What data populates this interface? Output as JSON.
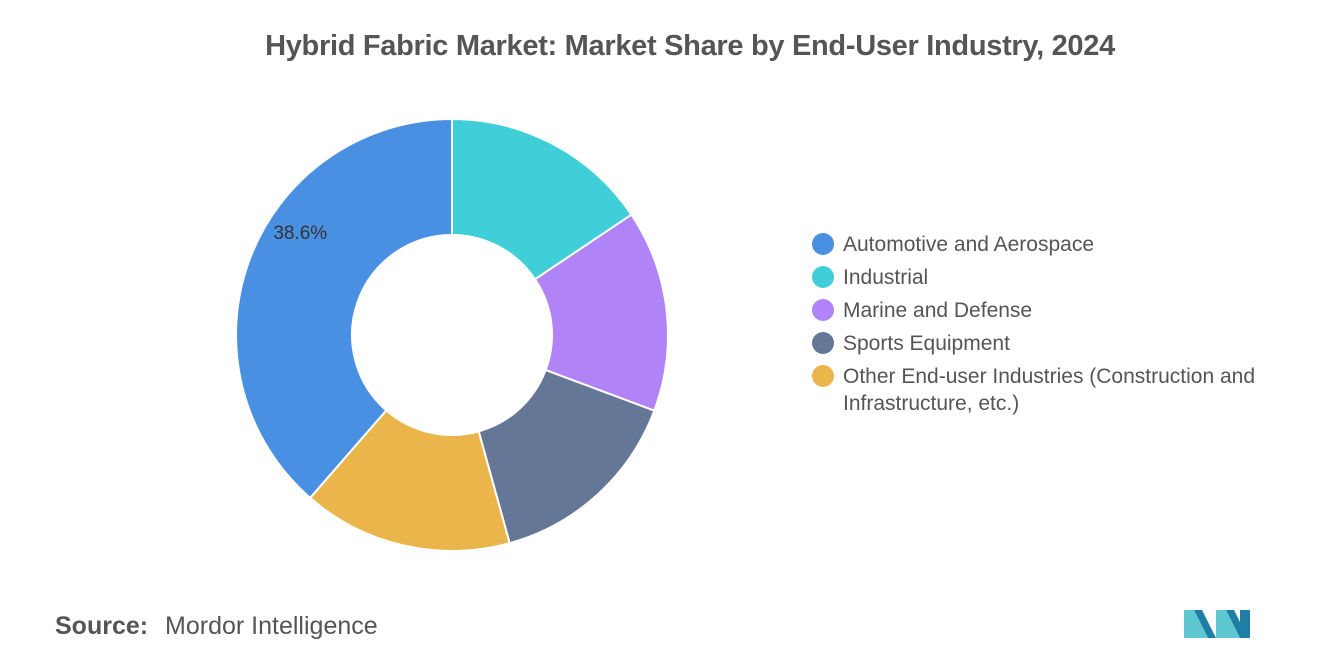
{
  "chart_data": {
    "type": "pie",
    "title": "Hybrid Fabric Market: Market Share by End-User Industry, 2024",
    "donut": true,
    "legend_position": "right",
    "series": [
      {
        "name": "Automotive and Aerospace",
        "value": 38.6,
        "color": "#4a90e2",
        "label": "38.6%"
      },
      {
        "name": "Industrial",
        "value": 15.6,
        "color": "#40cfd8",
        "label": ""
      },
      {
        "name": "Marine and Defense",
        "value": 15.1,
        "color": "#b084f7",
        "label": ""
      },
      {
        "name": "Sports Equipment",
        "value": 15.0,
        "color": "#657796",
        "label": ""
      },
      {
        "name": "Other End-user Industries (Construction and Infrastructure, etc.)",
        "value": 15.7,
        "color": "#eab64b",
        "label": ""
      }
    ]
  },
  "source": {
    "key": "Source:",
    "value": "Mordor Intelligence"
  },
  "logo": {
    "icon": "mordor-intelligence-logo-icon",
    "colors": [
      "#1f7ea3",
      "#5fc7cf"
    ]
  }
}
